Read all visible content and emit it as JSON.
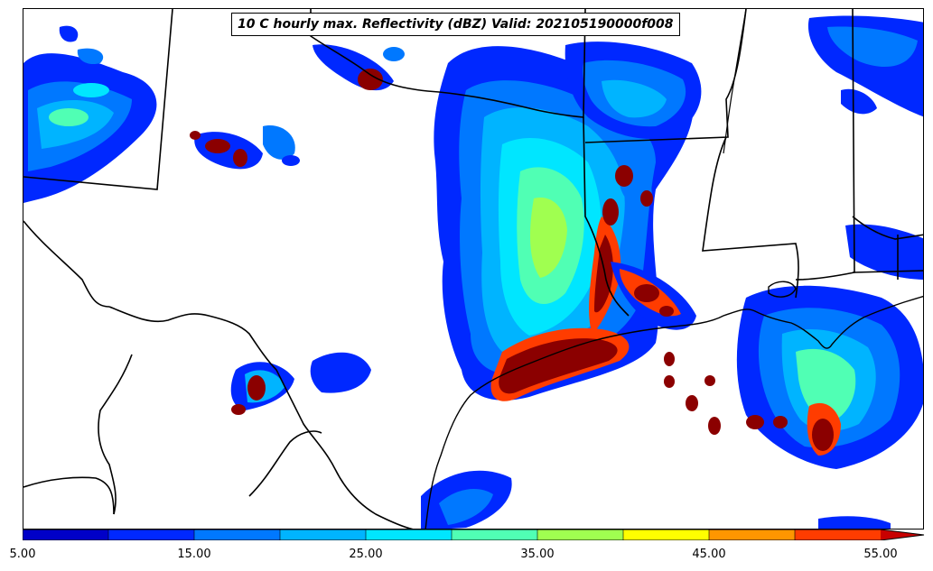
{
  "title": "10 C hourly max. Reflectivity (dBZ) Valid: 202105190000f008",
  "colorbar": {
    "ticks": [
      "5.00",
      "15.00",
      "25.00",
      "35.00",
      "45.00",
      "55.00"
    ],
    "colors": [
      "#0000c8",
      "#0028ff",
      "#0078ff",
      "#00b4ff",
      "#00e6ff",
      "#50ffb4",
      "#a0ff50",
      "#ffff00",
      "#ff9600",
      "#ff3c00",
      "#c80000",
      "#8b0000"
    ],
    "extend": "max"
  },
  "map": {
    "background": "#ffffff",
    "border_color": "#000000"
  }
}
